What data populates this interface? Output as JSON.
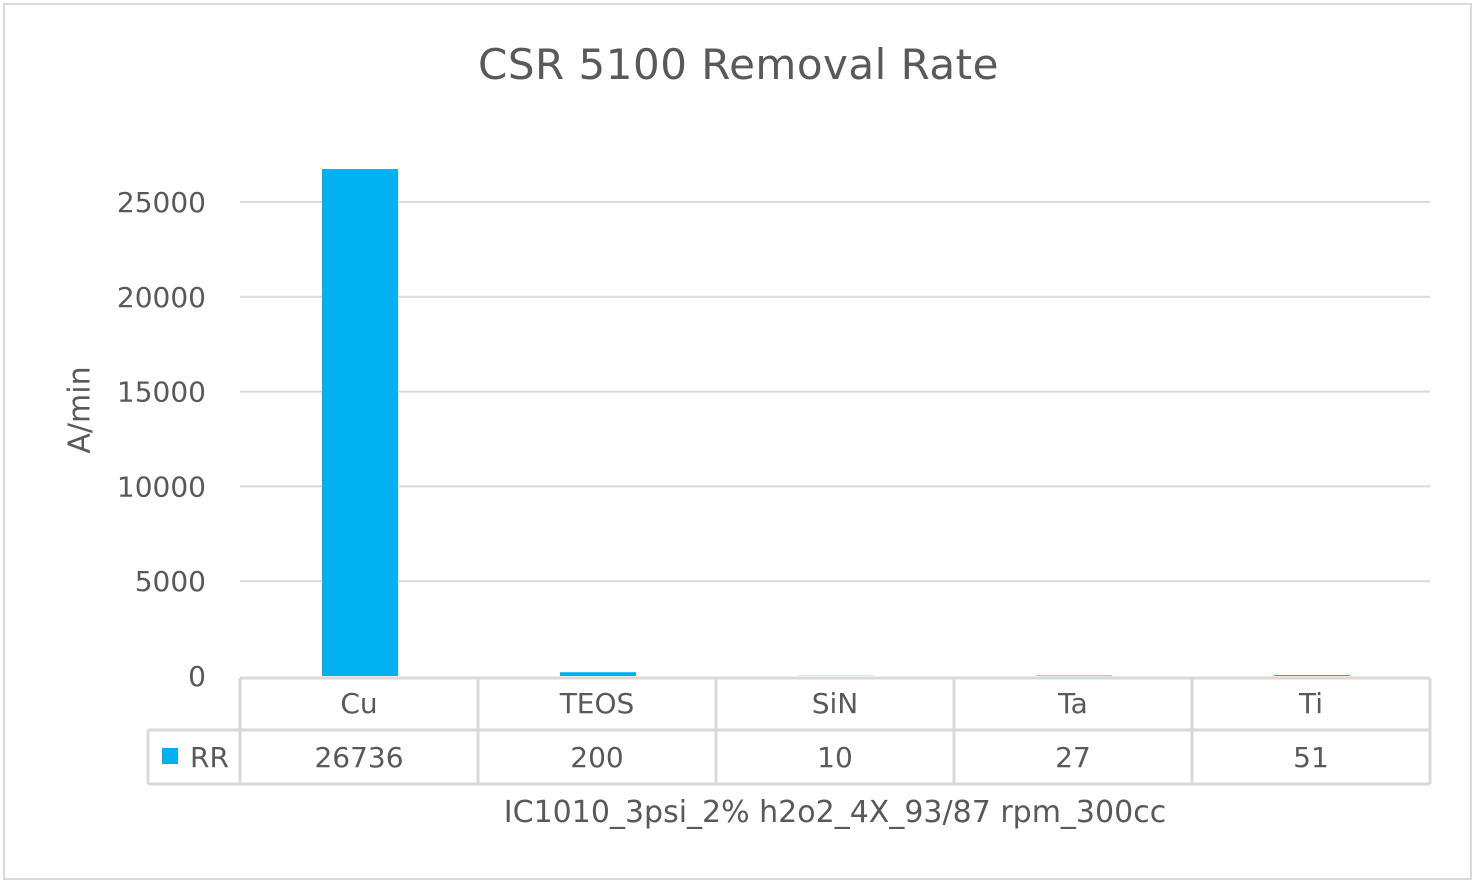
{
  "chart_data": {
    "type": "bar",
    "title": "CSR 5100 Removal Rate",
    "ylabel": "A/min",
    "xlabel": "IC1010_3psi_2% h2o2_4X_93/87 rpm_300cc",
    "categories": [
      "Cu",
      "TEOS",
      "SiN",
      "Ta",
      "Ti"
    ],
    "series": [
      {
        "name": "RR",
        "values": [
          26736,
          200,
          10,
          27,
          51
        ],
        "color": "#00b0f0"
      }
    ],
    "ylim": [
      0,
      25000
    ],
    "yticks": [
      0,
      5000,
      10000,
      15000,
      20000,
      25000
    ],
    "grid": true,
    "data_table": true
  }
}
